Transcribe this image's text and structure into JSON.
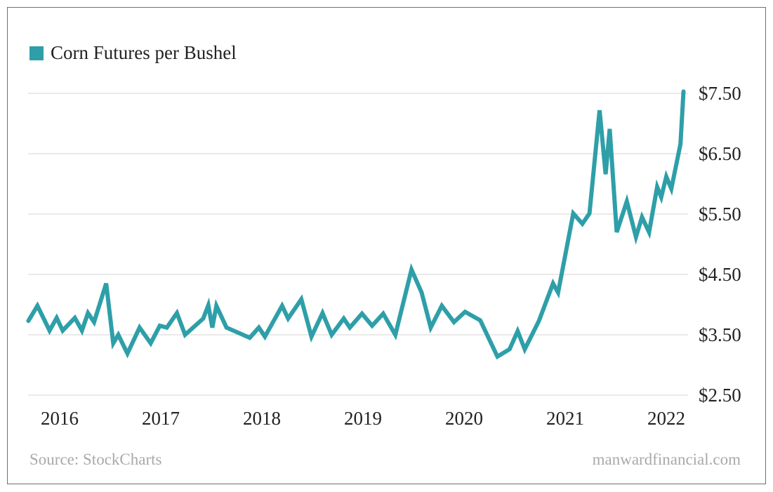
{
  "chart_data": {
    "type": "line",
    "title": "",
    "xlabel": "",
    "ylabel": "",
    "legend_position": "top-left",
    "grid": "horizontal",
    "series_color": "#2e9fa8",
    "ylim": [
      2.5,
      7.5
    ],
    "y_ticks": [
      {
        "value": 7.5,
        "label": "$7.50"
      },
      {
        "value": 6.5,
        "label": "$6.50"
      },
      {
        "value": 5.5,
        "label": "$5.50"
      },
      {
        "value": 4.5,
        "label": "$4.50"
      },
      {
        "value": 3.5,
        "label": "$3.50"
      },
      {
        "value": 2.5,
        "label": "$2.50"
      }
    ],
    "x_ticks": [
      {
        "value": 2016,
        "label": "2016"
      },
      {
        "value": 2017,
        "label": "2017"
      },
      {
        "value": 2018,
        "label": "2018"
      },
      {
        "value": 2019,
        "label": "2019"
      },
      {
        "value": 2020,
        "label": "2020"
      },
      {
        "value": 2021,
        "label": "2021"
      },
      {
        "value": 2022,
        "label": "2022"
      }
    ],
    "series": [
      {
        "name": "Corn Futures per Bushel",
        "x": [
          2015.69,
          2015.78,
          2015.9,
          2015.97,
          2016.03,
          2016.15,
          2016.22,
          2016.28,
          2016.34,
          2016.46,
          2016.53,
          2016.58,
          2016.67,
          2016.79,
          2016.9,
          2016.99,
          2017.06,
          2017.16,
          2017.24,
          2017.42,
          2017.47,
          2017.51,
          2017.55,
          2017.65,
          2017.88,
          2017.97,
          2018.03,
          2018.2,
          2018.26,
          2018.39,
          2018.49,
          2018.6,
          2018.69,
          2018.81,
          2018.87,
          2018.99,
          2019.09,
          2019.2,
          2019.32,
          2019.48,
          2019.58,
          2019.67,
          2019.78,
          2019.9,
          2020.01,
          2020.16,
          2020.33,
          2020.45,
          2020.53,
          2020.6,
          2020.74,
          2020.88,
          2020.93,
          2021.08,
          2021.17,
          2021.24,
          2021.34,
          2021.4,
          2021.44,
          2021.51,
          2021.61,
          2021.7,
          2021.76,
          2021.83,
          2021.91,
          2021.95,
          2022.0,
          2022.05,
          2022.14,
          2022.17
        ],
        "y": [
          3.73,
          3.98,
          3.57,
          3.78,
          3.57,
          3.78,
          3.57,
          3.86,
          3.71,
          4.35,
          3.36,
          3.5,
          3.19,
          3.62,
          3.36,
          3.65,
          3.62,
          3.86,
          3.5,
          3.77,
          3.99,
          3.62,
          3.98,
          3.62,
          3.45,
          3.62,
          3.47,
          3.98,
          3.77,
          4.09,
          3.47,
          3.86,
          3.5,
          3.77,
          3.62,
          3.85,
          3.65,
          3.85,
          3.5,
          4.58,
          4.2,
          3.62,
          3.98,
          3.71,
          3.88,
          3.74,
          3.14,
          3.26,
          3.56,
          3.26,
          3.73,
          4.35,
          4.2,
          5.51,
          5.34,
          5.51,
          7.22,
          6.16,
          6.91,
          5.2,
          5.71,
          5.12,
          5.45,
          5.2,
          5.95,
          5.78,
          6.12,
          5.92,
          6.66,
          7.53
        ]
      }
    ]
  },
  "legend": {
    "label": "Corn Futures per Bushel"
  },
  "footer": {
    "source": "Source: StockCharts",
    "site": "manwardfinancial.com"
  }
}
